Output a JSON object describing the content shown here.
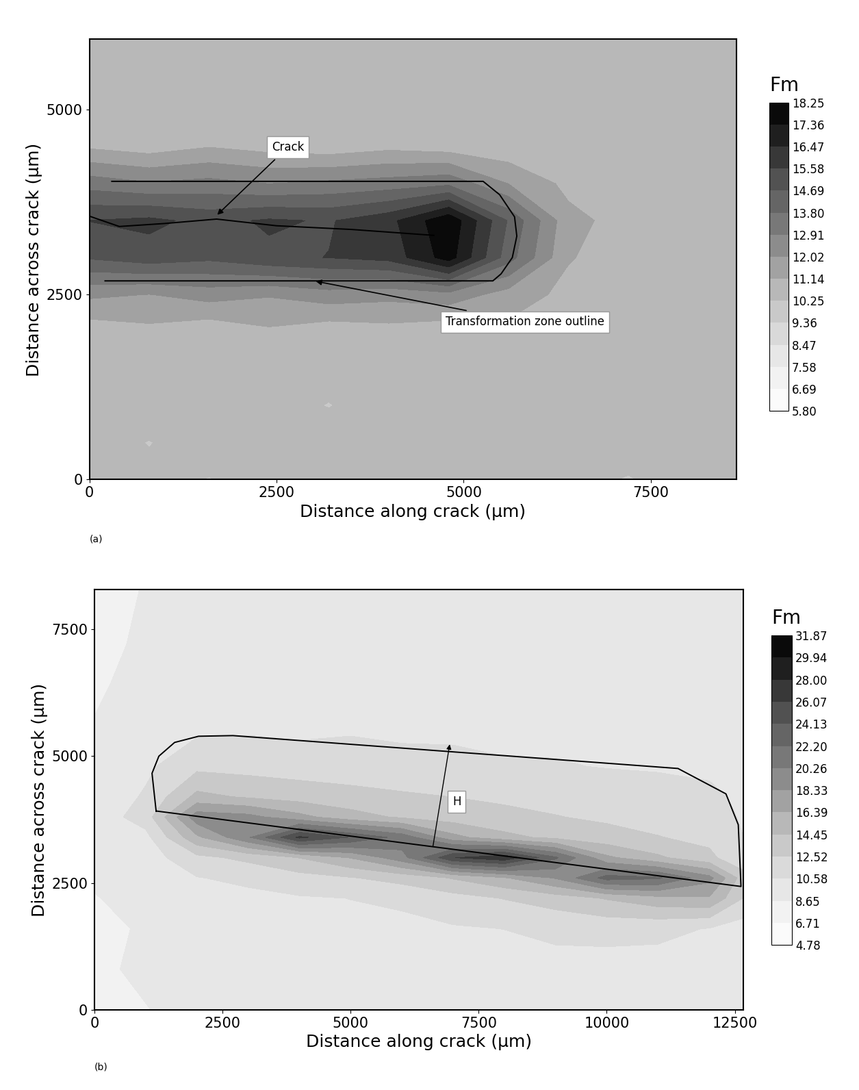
{
  "chart_data": [
    {
      "type": "contour",
      "panel_label": "(a)",
      "xlabel": "Distance along crack (µm)",
      "ylabel": "Distance across crack (µm)",
      "xlim": [
        0,
        8640
      ],
      "ylim": [
        0,
        5950
      ],
      "xticks": [
        0,
        2500,
        5000,
        7500
      ],
      "yticks": [
        0,
        2500,
        5000
      ],
      "x": [
        0,
        800,
        1600,
        2400,
        3200,
        4000,
        4800,
        5600,
        6400,
        7200,
        8000,
        8640
      ],
      "y": [
        0,
        500,
        1000,
        1500,
        2000,
        2500,
        3000,
        3500,
        4000,
        4500,
        5000,
        5500,
        5950
      ],
      "z": [
        [
          10.3,
          10.6,
          10.2,
          10.8,
          10.4,
          10.7,
          10.3,
          10.9,
          10.5,
          10.2,
          10.6,
          10.4
        ],
        [
          10.8,
          10.2,
          10.9,
          10.5,
          11.0,
          10.3,
          10.7,
          10.4,
          10.8,
          10.6,
          10.3,
          10.7
        ],
        [
          10.5,
          11.0,
          10.4,
          10.7,
          10.2,
          10.9,
          10.5,
          10.8,
          10.3,
          10.9,
          10.6,
          10.5
        ],
        [
          10.9,
          10.4,
          10.8,
          10.3,
          10.7,
          10.5,
          11.0,
          10.4,
          10.7,
          10.5,
          10.8,
          10.3
        ],
        [
          10.6,
          10.9,
          10.5,
          11.0,
          10.6,
          10.8,
          10.5,
          10.9,
          10.4,
          10.6,
          10.9,
          10.5
        ],
        [
          12.2,
          12.0,
          12.4,
          12.1,
          12.5,
          12.3,
          12.6,
          11.6,
          10.9,
          10.6,
          10.5,
          10.7
        ],
        [
          14.8,
          15.2,
          14.9,
          15.4,
          15.6,
          15.9,
          17.8,
          14.2,
          11.2,
          10.7,
          10.6,
          10.8
        ],
        [
          15.6,
          15.8,
          15.3,
          15.7,
          15.5,
          16.2,
          18.1,
          14.6,
          11.4,
          10.8,
          10.5,
          10.6
        ],
        [
          13.4,
          13.0,
          13.2,
          12.9,
          13.1,
          13.3,
          13.6,
          12.0,
          10.9,
          10.5,
          10.8,
          10.4
        ],
        [
          11.0,
          10.7,
          11.1,
          10.8,
          10.6,
          10.9,
          10.7,
          10.5,
          10.8,
          10.6,
          10.4,
          10.7
        ],
        [
          10.8,
          10.6,
          10.9,
          10.4,
          10.7,
          10.5,
          10.8,
          10.6,
          10.3,
          10.7,
          10.5,
          10.9
        ],
        [
          10.5,
          10.9,
          10.6,
          10.8,
          10.5,
          10.7,
          10.4,
          10.9,
          10.6,
          10.4,
          10.8,
          10.5
        ],
        [
          10.7,
          10.4,
          10.8,
          10.6,
          10.9,
          10.5,
          10.7,
          10.5,
          10.8,
          10.6,
          10.5,
          10.7
        ]
      ],
      "colorbar": {
        "title": "Fm",
        "range": [
          5.8,
          18.25
        ],
        "ticks": [
          {
            "value": 5.8,
            "label": "5.80"
          },
          6.69,
          7.58,
          8.47,
          9.36,
          10.25,
          11.14,
          12.02,
          12.91,
          {
            "value": 13.8,
            "label": "13.80"
          },
          14.69,
          15.58,
          16.47,
          17.36,
          18.25
        ]
      },
      "lines": [
        {
          "x": [
            0,
            400,
            1000,
            1700,
            2500,
            3500,
            4600
          ],
          "y": [
            3560,
            3420,
            3460,
            3520,
            3430,
            3380,
            3300
          ]
        },
        {
          "x": [
            300,
            5260,
            5480,
            5680,
            5710,
            5650,
            5500,
            5390,
            210
          ],
          "y": [
            4030,
            4030,
            3850,
            3550,
            3290,
            3000,
            2780,
            2685,
            2685
          ]
        }
      ],
      "annotations": [
        {
          "text": "Crack",
          "xy": [
            2650,
            4490
          ],
          "arrow_to": [
            1690,
            3560
          ]
        },
        {
          "text": "Transformation zone outline",
          "xy": [
            5820,
            2130
          ],
          "arrow_to": [
            3000,
            2685
          ]
        }
      ],
      "arrows": []
    },
    {
      "type": "contour",
      "panel_label": "(b)",
      "xlabel": "Distance along crack (µm)",
      "ylabel": "Distance across crack (µm)",
      "xlim": [
        0,
        12660
      ],
      "ylim": [
        0,
        8280
      ],
      "xticks": [
        0,
        2500,
        5000,
        7500,
        10000,
        12500
      ],
      "yticks": [
        0,
        2500,
        5000,
        7500
      ],
      "x": [
        0,
        1000,
        2000,
        3000,
        4000,
        5000,
        6000,
        7000,
        8000,
        9000,
        10000,
        11000,
        12000,
        12660
      ],
      "y": [
        0,
        800,
        1600,
        2200,
        2600,
        3000,
        3400,
        3800,
        4200,
        4800,
        5600,
        6400,
        7200,
        8280
      ],
      "z": [
        [
          8.2,
          8.6,
          9.1,
          9.4,
          9.0,
          9.3,
          9.6,
          9.2,
          9.5,
          9.8,
          9.4,
          9.6,
          9.3,
          9.0
        ],
        [
          8.4,
          8.9,
          9.3,
          9.6,
          9.4,
          9.8,
          9.5,
          9.9,
          9.7,
          10.1,
          9.8,
          9.9,
          9.6,
          9.2
        ],
        [
          8.3,
          8.8,
          9.5,
          9.9,
          9.7,
          10.2,
          10.0,
          10.4,
          10.6,
          10.9,
          11.2,
          11.0,
          10.5,
          9.6
        ],
        [
          8.6,
          9.0,
          9.8,
          10.1,
          10.4,
          10.6,
          11.0,
          11.8,
          12.6,
          13.5,
          14.6,
          15.8,
          16.2,
          12.5
        ],
        [
          8.8,
          9.2,
          10.5,
          11.0,
          11.8,
          12.4,
          13.2,
          14.6,
          16.2,
          18.5,
          23.0,
          22.5,
          19.0,
          13.5
        ],
        [
          9.0,
          9.6,
          12.0,
          13.0,
          14.5,
          16.5,
          19.5,
          26.0,
          27.5,
          22.5,
          16.8,
          14.8,
          13.0,
          11.0
        ],
        [
          9.2,
          10.0,
          16.0,
          20.0,
          26.5,
          24.0,
          21.5,
          17.0,
          15.0,
          14.0,
          13.2,
          12.6,
          12.0,
          10.6
        ],
        [
          9.4,
          11.5,
          19.5,
          19.0,
          17.0,
          15.2,
          14.2,
          13.5,
          13.0,
          12.6,
          12.2,
          11.8,
          11.4,
          10.4
        ],
        [
          9.3,
          10.8,
          15.0,
          14.2,
          13.6,
          13.2,
          12.8,
          12.5,
          12.2,
          11.9,
          11.6,
          11.3,
          11.0,
          10.2
        ],
        [
          9.0,
          10.2,
          12.0,
          11.8,
          11.6,
          11.4,
          11.2,
          11.0,
          10.8,
          10.7,
          10.5,
          10.4,
          10.2,
          9.8
        ],
        [
          8.7,
          9.4,
          10.0,
          10.2,
          10.0,
          10.3,
          10.1,
          10.2,
          9.9,
          10.1,
          9.8,
          10.0,
          9.7,
          9.4
        ],
        [
          8.5,
          9.0,
          9.6,
          9.4,
          9.8,
          9.5,
          9.7,
          9.4,
          9.6,
          9.3,
          9.5,
          9.2,
          9.4,
          9.1
        ],
        [
          8.4,
          8.8,
          9.3,
          9.6,
          9.2,
          9.5,
          9.3,
          9.6,
          9.4,
          9.2,
          9.5,
          9.3,
          9.1,
          8.9
        ],
        [
          8.3,
          8.7,
          9.1,
          9.4,
          9.0,
          9.3,
          9.1,
          9.4,
          9.2,
          9.0,
          9.3,
          9.1,
          8.9,
          8.7
        ]
      ],
      "colorbar": {
        "title": "Fm",
        "range": [
          4.78,
          31.87
        ],
        "ticks": [
          4.78,
          6.71,
          8.65,
          10.58,
          12.52,
          14.45,
          16.39,
          18.33,
          20.26,
          {
            "value": 22.2,
            "label": "22.20"
          },
          24.13,
          26.07,
          {
            "value": 28.0,
            "label": "28.00"
          },
          29.94,
          31.87
        ]
      },
      "lines": [
        {
          "x": [
            1203,
            1123,
            1257,
            1564,
            2032,
            2701,
            11390,
            12326,
            12567,
            12620,
            1203
          ],
          "y": [
            3919,
            4662,
            5000,
            5270,
            5392,
            5405,
            4757,
            4257,
            3649,
            2432,
            3919
          ]
        }
      ],
      "annotations": [
        {
          "text": "H",
          "xy": [
            7070,
            4100
          ]
        }
      ],
      "arrows": [
        {
          "from": [
            6600,
            3180
          ],
          "to": [
            6940,
            5270
          ]
        }
      ]
    }
  ]
}
